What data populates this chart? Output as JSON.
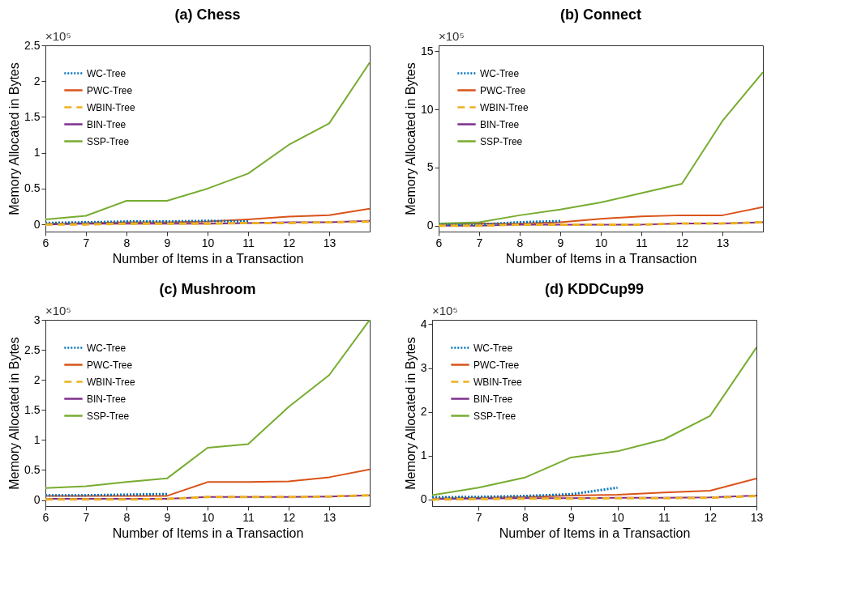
{
  "chart_data": [
    {
      "type": "line",
      "title": "(a) Chess",
      "xlabel": "Number of Items in a Transaction",
      "ylabel": "Memory Allocated in Bytes",
      "x": [
        6,
        7,
        8,
        9,
        10,
        11,
        12,
        13,
        14
      ],
      "xlim": [
        6,
        14
      ],
      "xticks": [
        6,
        7,
        8,
        9,
        10,
        11,
        12,
        13
      ],
      "ylim": [
        -0.1,
        2.5
      ],
      "yticks": [
        0,
        0.5,
        1,
        1.5,
        2,
        2.5
      ],
      "annotations": [
        "×10⁵"
      ],
      "grid": false,
      "legend": "top left",
      "series": [
        {
          "name": "WC-Tree",
          "color": "#0072bd",
          "line_style": "dotted",
          "values": [
            0.02,
            0.03,
            0.04,
            0.04,
            0.05,
            0.04,
            null,
            null,
            null
          ]
        },
        {
          "name": "PWC-Tree",
          "color": "#d95319",
          "line_style": "solid",
          "values": [
            0.01,
            0.02,
            0.03,
            0.03,
            0.04,
            0.07,
            0.11,
            0.13,
            0.22
          ]
        },
        {
          "name": "WBIN-Tree",
          "color": "#edb120",
          "line_style": "dashed",
          "values": [
            0,
            0,
            0.01,
            0.01,
            0.01,
            0.02,
            0.02,
            0.03,
            0.04
          ]
        },
        {
          "name": "BIN-Tree",
          "color": "#7e2f8e",
          "line_style": "solid",
          "values": [
            0,
            0.01,
            0.01,
            0.01,
            0.01,
            0.02,
            0.03,
            0.03,
            0.05
          ]
        },
        {
          "name": "SSP-Tree",
          "color": "#77ac30",
          "line_style": "solid",
          "values": [
            0.07,
            0.12,
            0.33,
            0.33,
            0.5,
            0.71,
            1.11,
            1.41,
            2.26
          ]
        }
      ]
    },
    {
      "type": "line",
      "title": "(b) Connect",
      "xlabel": "Number of Items in a Transaction",
      "ylabel": "Memory Allocated in Bytes",
      "x": [
        6,
        7,
        8,
        9,
        10,
        11,
        12,
        13,
        14
      ],
      "xlim": [
        6,
        14
      ],
      "xticks": [
        6,
        7,
        8,
        9,
        10,
        11,
        12,
        13
      ],
      "ylim": [
        -0.5,
        15.5
      ],
      "yticks": [
        0,
        5,
        10,
        15
      ],
      "annotations": [
        "×10⁵"
      ],
      "grid": false,
      "legend": "top left",
      "series": [
        {
          "name": "WC-Tree",
          "color": "#0072bd",
          "line_style": "dotted",
          "values": [
            0.1,
            0.1,
            0.3,
            0.4,
            null,
            null,
            null,
            null,
            null
          ]
        },
        {
          "name": "PWC-Tree",
          "color": "#d95319",
          "line_style": "solid",
          "values": [
            0.1,
            0.2,
            0.2,
            0.3,
            0.6,
            0.8,
            0.9,
            0.9,
            1.6
          ]
        },
        {
          "name": "WBIN-Tree",
          "color": "#edb120",
          "line_style": "dashed",
          "values": [
            0,
            0,
            0.1,
            0.1,
            0.1,
            0.1,
            0.2,
            0.2,
            0.3
          ]
        },
        {
          "name": "BIN-Tree",
          "color": "#7e2f8e",
          "line_style": "solid",
          "values": [
            0,
            0,
            0.1,
            0.1,
            0.1,
            0.1,
            0.2,
            0.2,
            0.3
          ]
        },
        {
          "name": "SSP-Tree",
          "color": "#77ac30",
          "line_style": "solid",
          "values": [
            0.2,
            0.3,
            0.9,
            1.4,
            2,
            2.8,
            3.6,
            9,
            13.2
          ]
        }
      ]
    },
    {
      "type": "line",
      "title": "(c) Mushroom",
      "xlabel": "Number of Items in a Transaction",
      "ylabel": "Memory Allocated in Bytes",
      "x": [
        6,
        7,
        8,
        9,
        10,
        11,
        12,
        13,
        14
      ],
      "xlim": [
        6,
        14
      ],
      "xticks": [
        6,
        7,
        8,
        9,
        10,
        11,
        12,
        13
      ],
      "ylim": [
        -0.1,
        3
      ],
      "yticks": [
        0,
        0.5,
        1,
        1.5,
        2,
        2.5,
        3
      ],
      "annotations": [
        "×10⁵"
      ],
      "grid": false,
      "legend": "top left",
      "series": [
        {
          "name": "WC-Tree",
          "color": "#0072bd",
          "line_style": "dotted",
          "values": [
            0.08,
            0.08,
            0.09,
            0.1,
            null,
            null,
            null,
            null,
            null
          ]
        },
        {
          "name": "PWC-Tree",
          "color": "#d95319",
          "line_style": "solid",
          "values": [
            0.07,
            0.07,
            0.07,
            0.07,
            0.3,
            0.3,
            0.31,
            0.38,
            0.51
          ]
        },
        {
          "name": "WBIN-Tree",
          "color": "#edb120",
          "line_style": "dashed",
          "values": [
            0.01,
            0.01,
            0.01,
            0.02,
            0.05,
            0.05,
            0.05,
            0.06,
            0.08
          ]
        },
        {
          "name": "BIN-Tree",
          "color": "#7e2f8e",
          "line_style": "solid",
          "values": [
            0.02,
            0.02,
            0.02,
            0.02,
            0.05,
            0.05,
            0.05,
            0.06,
            0.08
          ]
        },
        {
          "name": "SSP-Tree",
          "color": "#77ac30",
          "line_style": "solid",
          "values": [
            0.2,
            0.23,
            0.3,
            0.36,
            0.87,
            0.93,
            1.55,
            2.08,
            3
          ]
        }
      ]
    },
    {
      "type": "line",
      "title": "(d) KDDCup99",
      "xlabel": "Number of Items in a Transaction",
      "ylabel": "Memory Allocated in Bytes",
      "x": [
        6,
        7,
        8,
        9,
        10,
        11,
        12,
        13
      ],
      "xlim": [
        6,
        13
      ],
      "xticks": [
        7,
        8,
        9,
        10,
        11,
        12,
        13
      ],
      "ylim": [
        -0.15,
        4.1
      ],
      "yticks": [
        0,
        1,
        2,
        3,
        4
      ],
      "annotations": [
        "×10⁵"
      ],
      "grid": false,
      "legend": "top left",
      "series": [
        {
          "name": "WC-Tree",
          "color": "#0072bd",
          "line_style": "dotted",
          "values": [
            0.05,
            0.06,
            0.08,
            0.12,
            0.27,
            null,
            null,
            null
          ]
        },
        {
          "name": "PWC-Tree",
          "color": "#d95319",
          "line_style": "solid",
          "values": [
            0.02,
            0.04,
            0.06,
            0.09,
            0.11,
            0.16,
            0.2,
            0.48
          ]
        },
        {
          "name": "WBIN-Tree",
          "color": "#edb120",
          "line_style": "dashed",
          "values": [
            0,
            0.01,
            0.02,
            0.02,
            0.03,
            0.03,
            0.04,
            0.08
          ]
        },
        {
          "name": "BIN-Tree",
          "color": "#7e2f8e",
          "line_style": "solid",
          "values": [
            0.01,
            0.02,
            0.03,
            0.03,
            0.04,
            0.04,
            0.05,
            0.09
          ]
        },
        {
          "name": "SSP-Tree",
          "color": "#77ac30",
          "line_style": "solid",
          "values": [
            0.1,
            0.27,
            0.5,
            0.96,
            1.1,
            1.37,
            1.91,
            3.47
          ]
        }
      ]
    }
  ]
}
